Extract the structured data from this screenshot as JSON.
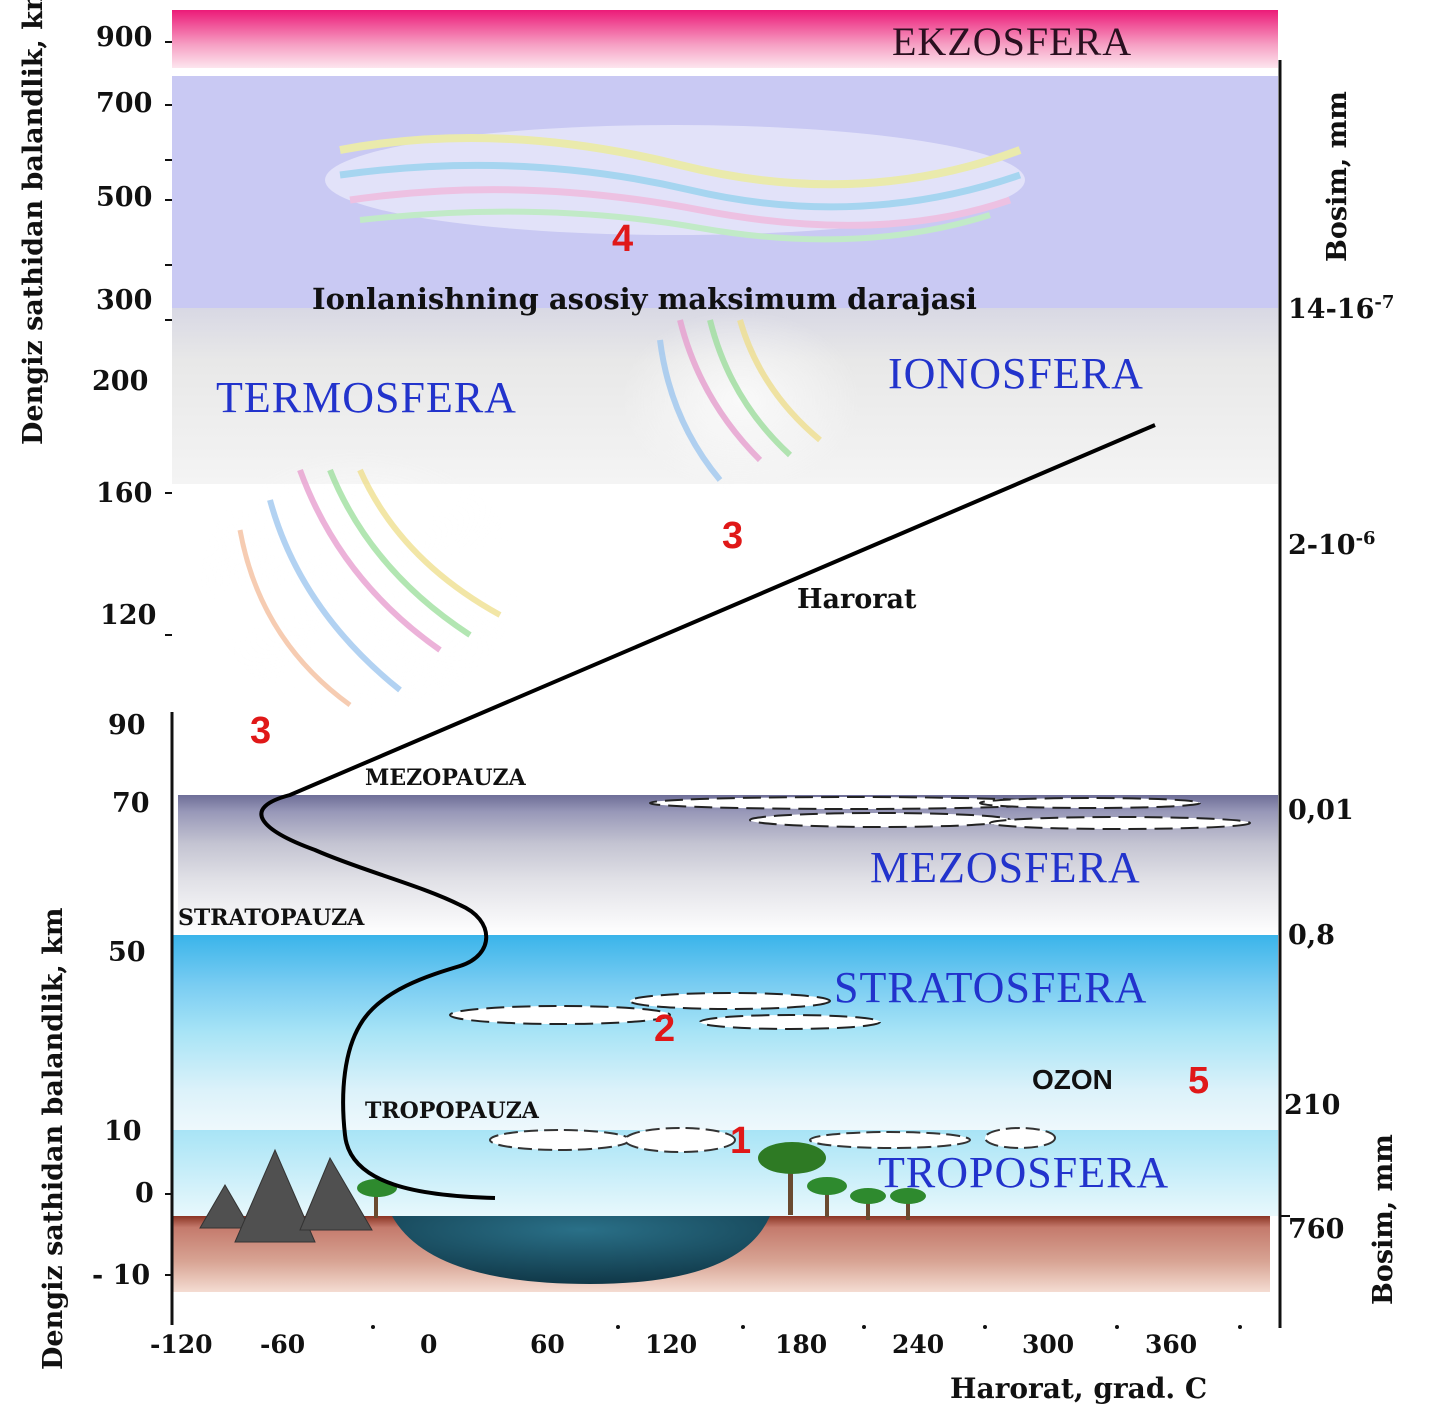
{
  "title_layers": {
    "ekzosfera": "EKZOSFERA",
    "termosfera": "TERMOSFERA",
    "ionosfera": "IONOSFERA",
    "mezosfera": "MEZOSFERA",
    "stratosfera": "STRATOSFERA",
    "troposfera": "TROPOSFERA"
  },
  "pauses": {
    "mezopauza": "MEZOPAUZA",
    "stratopauza": "STRATOPAUZA",
    "tropopauza": "TROPOPAUZA"
  },
  "annotations": {
    "ionization": "Ionlanishning asosiy maksimum darajasi",
    "temperature_line": "Harorat",
    "ozone": "OZON"
  },
  "markers": [
    "1",
    "2",
    "3",
    "3",
    "4",
    "5"
  ],
  "left_axis": {
    "title_upper": "Dengiz sathidan balandlik, km",
    "title_lower": "Dengiz sathidan balandlik, km",
    "ticks": [
      "900",
      "700",
      "500",
      "300",
      "200",
      "160",
      "120",
      "90",
      "70",
      "50",
      "10",
      "0",
      "- 10"
    ]
  },
  "right_axis": {
    "title_upper": "Bosim, mm",
    "title_lower": "Bosim, mm",
    "ticks": [
      {
        "base": "14-16",
        "exp": "-7"
      },
      {
        "base": "2-10",
        "exp": "-6"
      },
      {
        "base": "0,01",
        "exp": ""
      },
      {
        "base": "0,8",
        "exp": ""
      },
      {
        "base": "210",
        "exp": ""
      },
      {
        "base": "760",
        "exp": ""
      }
    ]
  },
  "bottom_axis": {
    "title": "Harorat, grad. C",
    "ticks": [
      "-120",
      "-60",
      "0",
      "60",
      "120",
      "180",
      "240",
      "300",
      "360"
    ]
  },
  "colors": {
    "exosphere": "#f0207a",
    "ionosphere": "#c8c8f4",
    "thermosphere": "#e6e6e6",
    "mesosphere": "#9a9ab8",
    "stratosphere": "#58c4ec",
    "troposphere": "#b8ecf8",
    "ground": "#c07868",
    "water": "#1a5a70",
    "layer_text": "#2233cc",
    "marker_text": "#e01818"
  }
}
